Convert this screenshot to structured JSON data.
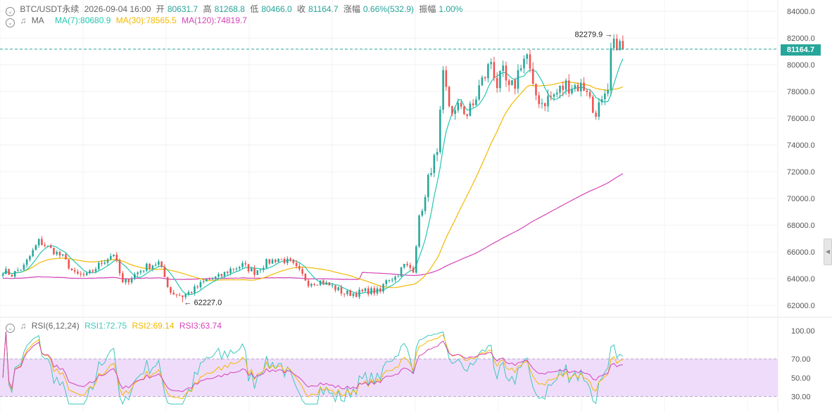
{
  "header": {
    "symbol": "BTC/USDT永续",
    "datetime": "2026-09-04 16:00",
    "open_label": "开",
    "open": "80631.7",
    "high_label": "高",
    "high": "81268.8",
    "low_label": "低",
    "low": "80466.0",
    "close_label": "收",
    "close": "81164.7",
    "change_label": "涨幅",
    "change": "0.66%(532.9)",
    "amplitude_label": "振幅",
    "amplitude": "1.00%"
  },
  "ma_legend": {
    "label": "MA",
    "ma7": "MA(7):80680.9",
    "ma30": "MA(30):78565.5",
    "ma120": "MA(120):74819.7"
  },
  "rsi_legend": {
    "label": "RSI(6,12,24)",
    "rsi1": "RSI1:72.75",
    "rsi2": "RSI2:69.14",
    "rsi3": "RSI3:63.74"
  },
  "colors": {
    "up": "#26a69a",
    "down": "#ef5350",
    "ma7": "#26c6b0",
    "ma30": "#f2b900",
    "ma120": "#d444b8",
    "rsi1": "#3ec7bd",
    "rsi2": "#f2b900",
    "rsi3": "#d444b8",
    "rsi_band": "#efdcfb"
  },
  "icons": [
    "chevron-down-icon",
    "bell-icon"
  ],
  "chart_data": [
    {
      "type": "candlestick",
      "title": "BTC/USDT永续",
      "ylim": [
        61500,
        84500
      ],
      "yticks": [
        62000,
        64000,
        66000,
        68000,
        70000,
        72000,
        74000,
        76000,
        78000,
        80000,
        82000,
        84000
      ],
      "ytick_labels": [
        "62000.0",
        "64000.0",
        "66000.0",
        "68000.0",
        "70000.0",
        "72000.0",
        "74000.0",
        "76000.0",
        "78000.0",
        "80000.0",
        "82000.0",
        "84000.0"
      ],
      "last_price": 81164.7,
      "last_price_label": "81164.7",
      "max_marker": {
        "index": 205,
        "value": 82279.9,
        "label": "82279.9"
      },
      "min_marker": {
        "index": 60,
        "value": 62227.0,
        "label": "62227.0"
      },
      "anchors": [
        [
          0,
          64600
        ],
        [
          3,
          64300
        ],
        [
          7,
          64900
        ],
        [
          12,
          66800
        ],
        [
          16,
          66200
        ],
        [
          20,
          65600
        ],
        [
          24,
          64300
        ],
        [
          28,
          64200
        ],
        [
          33,
          65200
        ],
        [
          37,
          65900
        ],
        [
          40,
          63600
        ],
        [
          44,
          64300
        ],
        [
          48,
          64900
        ],
        [
          52,
          65200
        ],
        [
          56,
          63000
        ],
        [
          60,
          62700
        ],
        [
          64,
          63200
        ],
        [
          68,
          63900
        ],
        [
          72,
          64100
        ],
        [
          76,
          64700
        ],
        [
          80,
          65000
        ],
        [
          84,
          64500
        ],
        [
          88,
          65200
        ],
        [
          92,
          65500
        ],
        [
          96,
          65200
        ],
        [
          99,
          64500
        ],
        [
          102,
          63700
        ],
        [
          106,
          63800
        ],
        [
          110,
          63400
        ],
        [
          114,
          62900
        ],
        [
          118,
          62900
        ],
        [
          122,
          63100
        ],
        [
          126,
          63000
        ],
        [
          128,
          64000
        ],
        [
          131,
          64100
        ],
        [
          134,
          65000
        ],
        [
          137,
          64700
        ],
        [
          139,
          68500
        ],
        [
          141,
          70000
        ],
        [
          143,
          72500
        ],
        [
          145,
          73000
        ],
        [
          147,
          79000
        ],
        [
          149,
          77000
        ],
        [
          151,
          76300
        ],
        [
          153,
          77000
        ],
        [
          155,
          76300
        ],
        [
          157,
          76900
        ],
        [
          159,
          78300
        ],
        [
          161,
          79200
        ],
        [
          163,
          80300
        ],
        [
          165,
          78500
        ],
        [
          167,
          79300
        ],
        [
          169,
          78000
        ],
        [
          171,
          78600
        ],
        [
          173,
          80200
        ],
        [
          175,
          80700
        ],
        [
          177,
          78000
        ],
        [
          180,
          77200
        ],
        [
          184,
          77700
        ],
        [
          188,
          78500
        ],
        [
          192,
          78400
        ],
        [
          195,
          78300
        ],
        [
          197,
          76500
        ],
        [
          200,
          77000
        ],
        [
          202,
          77600
        ],
        [
          203,
          81000
        ],
        [
          205,
          81700
        ],
        [
          207,
          81164
        ]
      ],
      "ma_periods": [
        7,
        30,
        120
      ],
      "ma120_start": 64000,
      "ma_last_values": {
        "ma7": 80680.9,
        "ma30": 78565.5,
        "ma120": 74819.7
      }
    },
    {
      "type": "line",
      "title": "RSI(6,12,24)",
      "ylim": [
        20,
        105
      ],
      "yticks": [
        30,
        50,
        70,
        100
      ],
      "ytick_labels": [
        "30.00",
        "50.00",
        "70.00",
        "100.00"
      ],
      "band": [
        30,
        70
      ],
      "series": [
        {
          "name": "RSI1",
          "last_value": 72.75
        },
        {
          "name": "RSI2",
          "last_value": 69.14
        },
        {
          "name": "RSI3",
          "last_value": 63.74
        }
      ]
    }
  ]
}
